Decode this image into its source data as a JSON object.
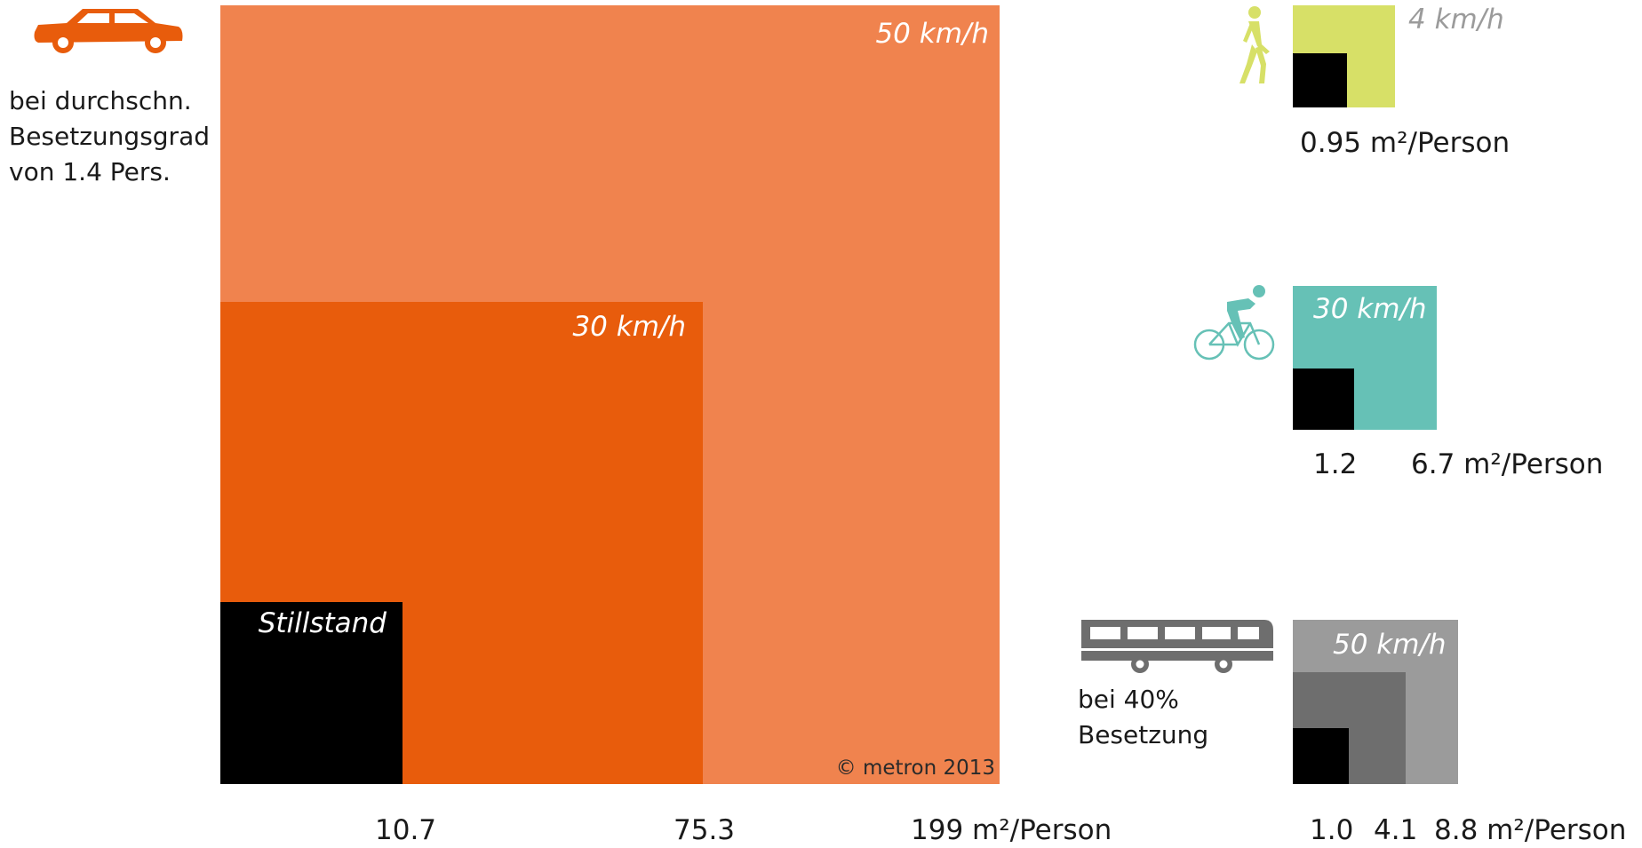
{
  "chart_data": {
    "type": "nested-area",
    "car": {
      "note": "bei durchschn.\nBesetzungsgrad\nvon 1.4 Pers.",
      "copyright": "© metron 2013",
      "unit": "m²/Person",
      "levels": [
        {
          "speed": "50 km/h",
          "value": 199,
          "value_label": "199 m²/Person",
          "color": "#f0834e"
        },
        {
          "speed": "30 km/h",
          "value": 75.3,
          "value_label": "75.3",
          "color": "#e85c0c"
        },
        {
          "speed": "Stillstand",
          "value": 10.7,
          "value_label": "10.7",
          "color": "#000000"
        }
      ]
    },
    "pedestrian": {
      "speed": "4 km/h",
      "standing_value": 0.3,
      "value": 0.95,
      "value_label": "0.95 m²/Person",
      "color": "#d7e067"
    },
    "bicycle": {
      "speed": "30 km/h",
      "standing_value": 1.2,
      "value": 6.7,
      "standing_label": "1.2",
      "value_label": "6.7 m²/Person",
      "color": "#66c1b6"
    },
    "bus": {
      "note": "bei 40%\nBesetzung",
      "speed": "50 km/h",
      "levels": [
        {
          "value": 8.8,
          "value_label": "8.8 m²/Person",
          "color": "#9b9b9b"
        },
        {
          "value": 4.1,
          "value_label": "4.1",
          "color": "#6e6e6e"
        },
        {
          "value": 1.0,
          "value_label": "1.0",
          "color": "#000000"
        }
      ]
    }
  },
  "colors": {
    "car_icon": "#e85c0c",
    "pedestrian_icon": "#d7e067",
    "bicycle_icon": "#66c1b6",
    "bus_icon": "#6e6e6e",
    "ped_speed_text": "#9b9b9b"
  },
  "icons": [
    "car-icon",
    "pedestrian-icon",
    "bicycle-icon",
    "bus-icon"
  ]
}
